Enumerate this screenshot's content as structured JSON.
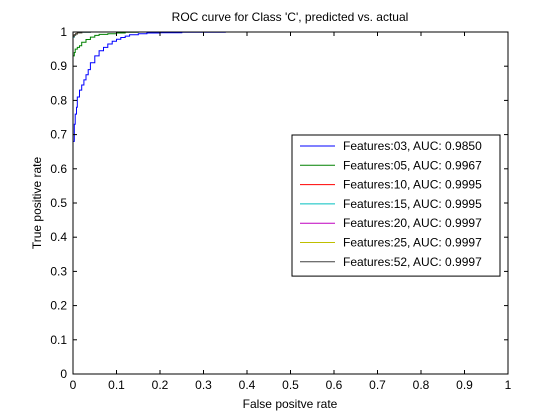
{
  "chart_data": {
    "type": "line",
    "title": "ROC curve for Class 'C', predicted vs. actual",
    "xlabel": "False positve rate",
    "ylabel": "True positive rate",
    "xlim": [
      0,
      1
    ],
    "ylim": [
      0,
      1
    ],
    "xticks": [
      "0",
      "0.1",
      "0.2",
      "0.3",
      "0.4",
      "0.5",
      "0.6",
      "0.7",
      "0.8",
      "0.9",
      "1"
    ],
    "yticks": [
      "0",
      "0.1",
      "0.2",
      "0.3",
      "0.4",
      "0.5",
      "0.6",
      "0.7",
      "0.8",
      "0.9",
      "1"
    ],
    "grid": false,
    "legend_position": "right-middle",
    "series": [
      {
        "name": "Features:03, AUC: 0.9850",
        "color": "#0000ff",
        "x": [
          0,
          0,
          0.003,
          0.005,
          0.008,
          0.01,
          0.015,
          0.02,
          0.025,
          0.03,
          0.035,
          0.04,
          0.05,
          0.06,
          0.07,
          0.08,
          0.09,
          0.1,
          0.11,
          0.12,
          0.13,
          0.15,
          0.17,
          0.2,
          0.25,
          0.3,
          0.35,
          0.4,
          0.435
        ],
        "y": [
          0,
          0.6,
          0.68,
          0.73,
          0.76,
          0.78,
          0.81,
          0.83,
          0.845,
          0.86,
          0.875,
          0.89,
          0.91,
          0.93,
          0.945,
          0.955,
          0.965,
          0.973,
          0.979,
          0.984,
          0.988,
          0.992,
          0.995,
          0.997,
          0.998,
          0.999,
          0.999,
          1.0,
          1.0
        ]
      },
      {
        "name": "Features:05, AUC: 0.9967",
        "color": "#008000",
        "x": [
          0,
          0,
          0.003,
          0.005,
          0.01,
          0.015,
          0.02,
          0.03,
          0.04,
          0.05,
          0.06,
          0.08,
          0.1,
          0.12,
          0.15,
          0.2,
          0.3
        ],
        "y": [
          0,
          0.89,
          0.93,
          0.94,
          0.95,
          0.955,
          0.96,
          0.97,
          0.978,
          0.985,
          0.99,
          0.993,
          0.995,
          0.997,
          0.999,
          1.0,
          1.0
        ]
      },
      {
        "name": "Features:10, AUC: 0.9995",
        "color": "#ff0000",
        "x": [
          0,
          0,
          0.003,
          0.006,
          0.01,
          0.02,
          0.04,
          0.06,
          0.1
        ],
        "y": [
          0,
          0.975,
          0.985,
          0.99,
          0.994,
          0.997,
          0.999,
          1.0,
          1.0
        ]
      },
      {
        "name": "Features:15, AUC: 0.9995",
        "color": "#00bfbf",
        "x": [
          0,
          0,
          0.003,
          0.006,
          0.01,
          0.02,
          0.04,
          0.06,
          0.1
        ],
        "y": [
          0,
          0.975,
          0.985,
          0.99,
          0.994,
          0.997,
          0.999,
          1.0,
          1.0
        ]
      },
      {
        "name": "Features:20, AUC: 0.9997",
        "color": "#bf00bf",
        "x": [
          0,
          0,
          0.003,
          0.006,
          0.01,
          0.02,
          0.04,
          0.08
        ],
        "y": [
          0,
          0.98,
          0.988,
          0.992,
          0.995,
          0.998,
          1.0,
          1.0
        ]
      },
      {
        "name": "Features:25, AUC: 0.9997",
        "color": "#bfbf00",
        "x": [
          0,
          0,
          0.003,
          0.006,
          0.01,
          0.02,
          0.04,
          0.08
        ],
        "y": [
          0,
          0.98,
          0.988,
          0.992,
          0.995,
          0.998,
          1.0,
          1.0
        ]
      },
      {
        "name": "Features:52, AUC: 0.9997",
        "color": "#404040",
        "x": [
          0,
          0,
          0.003,
          0.006,
          0.01,
          0.02,
          0.04,
          0.08
        ],
        "y": [
          0,
          0.98,
          0.988,
          0.992,
          0.995,
          0.998,
          1.0,
          1.0
        ]
      }
    ]
  }
}
